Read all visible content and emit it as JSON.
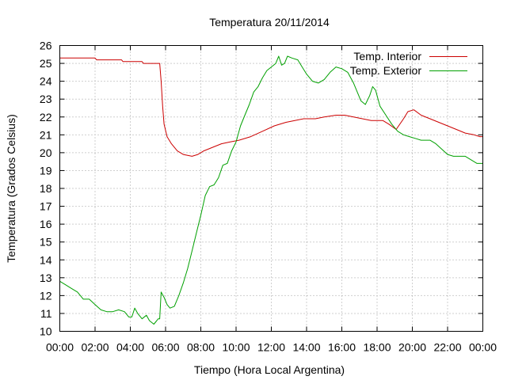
{
  "chart_data": {
    "type": "line",
    "title": "Temperatura 20/11/2014",
    "xlabel": "Tiempo (Hora Local Argentina)",
    "ylabel": "Temperatura (Grados Celsius)",
    "xlim": [
      "00:00",
      "24:00"
    ],
    "ylim": [
      10,
      26
    ],
    "x_ticks": [
      "00:00",
      "02:00",
      "04:00",
      "06:00",
      "08:00",
      "10:00",
      "12:00",
      "14:00",
      "16:00",
      "18:00",
      "20:00",
      "22:00",
      "00:00"
    ],
    "y_ticks": [
      10,
      11,
      12,
      13,
      14,
      15,
      16,
      17,
      18,
      19,
      20,
      21,
      22,
      23,
      24,
      25,
      26
    ],
    "grid": true,
    "legend_position": "top-right",
    "series": [
      {
        "name": "Temp. Interior",
        "color": "#cc0000",
        "points": [
          [
            "00:00",
            25.3
          ],
          [
            "02:00",
            25.3
          ],
          [
            "02:05",
            25.2
          ],
          [
            "03:30",
            25.2
          ],
          [
            "03:35",
            25.1
          ],
          [
            "04:40",
            25.1
          ],
          [
            "04:45",
            25.0
          ],
          [
            "05:40",
            25.0
          ],
          [
            "05:45",
            24.0
          ],
          [
            "05:50",
            22.6
          ],
          [
            "05:55",
            21.6
          ],
          [
            "06:05",
            20.9
          ],
          [
            "06:20",
            20.5
          ],
          [
            "06:40",
            20.1
          ],
          [
            "07:00",
            19.9
          ],
          [
            "07:30",
            19.8
          ],
          [
            "07:50",
            19.9
          ],
          [
            "08:10",
            20.1
          ],
          [
            "08:40",
            20.3
          ],
          [
            "09:10",
            20.5
          ],
          [
            "09:40",
            20.6
          ],
          [
            "10:10",
            20.7
          ],
          [
            "10:50",
            20.9
          ],
          [
            "11:30",
            21.2
          ],
          [
            "12:10",
            21.5
          ],
          [
            "12:50",
            21.7
          ],
          [
            "13:20",
            21.8
          ],
          [
            "13:50",
            21.9
          ],
          [
            "14:30",
            21.9
          ],
          [
            "15:00",
            22.0
          ],
          [
            "15:40",
            22.1
          ],
          [
            "16:10",
            22.1
          ],
          [
            "16:40",
            22.0
          ],
          [
            "17:10",
            21.9
          ],
          [
            "17:40",
            21.8
          ],
          [
            "18:20",
            21.8
          ],
          [
            "18:40",
            21.6
          ],
          [
            "19:05",
            21.3
          ],
          [
            "19:30",
            21.9
          ],
          [
            "19:45",
            22.3
          ],
          [
            "20:05",
            22.4
          ],
          [
            "20:30",
            22.1
          ],
          [
            "21:00",
            21.9
          ],
          [
            "21:30",
            21.7
          ],
          [
            "22:00",
            21.5
          ],
          [
            "22:30",
            21.3
          ],
          [
            "23:00",
            21.1
          ],
          [
            "23:30",
            21.0
          ],
          [
            "23:50",
            20.9
          ],
          [
            "24:00",
            20.9
          ]
        ]
      },
      {
        "name": "Temp. Exterior",
        "color": "#00a000",
        "points": [
          [
            "00:00",
            12.8
          ],
          [
            "00:20",
            12.6
          ],
          [
            "00:40",
            12.4
          ],
          [
            "01:00",
            12.2
          ],
          [
            "01:10",
            12.0
          ],
          [
            "01:20",
            11.8
          ],
          [
            "01:40",
            11.8
          ],
          [
            "02:00",
            11.5
          ],
          [
            "02:20",
            11.2
          ],
          [
            "02:40",
            11.1
          ],
          [
            "03:00",
            11.1
          ],
          [
            "03:20",
            11.2
          ],
          [
            "03:40",
            11.1
          ],
          [
            "03:55",
            10.8
          ],
          [
            "04:05",
            10.8
          ],
          [
            "04:15",
            11.3
          ],
          [
            "04:25",
            11.0
          ],
          [
            "04:40",
            10.7
          ],
          [
            "04:55",
            10.9
          ],
          [
            "05:05",
            10.6
          ],
          [
            "05:20",
            10.4
          ],
          [
            "05:30",
            10.6
          ],
          [
            "05:35",
            10.7
          ],
          [
            "05:40",
            10.7
          ],
          [
            "05:45",
            12.2
          ],
          [
            "05:55",
            11.9
          ],
          [
            "06:05",
            11.5
          ],
          [
            "06:15",
            11.3
          ],
          [
            "06:30",
            11.4
          ],
          [
            "06:45",
            12.0
          ],
          [
            "07:00",
            12.7
          ],
          [
            "07:15",
            13.5
          ],
          [
            "07:30",
            14.5
          ],
          [
            "07:45",
            15.5
          ],
          [
            "08:00",
            16.5
          ],
          [
            "08:15",
            17.6
          ],
          [
            "08:30",
            18.1
          ],
          [
            "08:45",
            18.2
          ],
          [
            "09:00",
            18.6
          ],
          [
            "09:15",
            19.3
          ],
          [
            "09:30",
            19.4
          ],
          [
            "09:45",
            20.1
          ],
          [
            "10:00",
            20.6
          ],
          [
            "10:15",
            21.5
          ],
          [
            "10:30",
            22.1
          ],
          [
            "10:45",
            22.7
          ],
          [
            "11:00",
            23.4
          ],
          [
            "11:15",
            23.7
          ],
          [
            "11:30",
            24.2
          ],
          [
            "11:45",
            24.6
          ],
          [
            "12:00",
            24.8
          ],
          [
            "12:15",
            25.0
          ],
          [
            "12:25",
            25.4
          ],
          [
            "12:35",
            24.9
          ],
          [
            "12:45",
            25.0
          ],
          [
            "12:55",
            25.4
          ],
          [
            "13:10",
            25.3
          ],
          [
            "13:30",
            25.2
          ],
          [
            "13:45",
            24.8
          ],
          [
            "14:00",
            24.4
          ],
          [
            "14:20",
            24.0
          ],
          [
            "14:40",
            23.9
          ],
          [
            "15:00",
            24.1
          ],
          [
            "15:20",
            24.5
          ],
          [
            "15:40",
            24.8
          ],
          [
            "16:00",
            24.7
          ],
          [
            "16:20",
            24.5
          ],
          [
            "16:40",
            23.9
          ],
          [
            "16:55",
            23.3
          ],
          [
            "17:05",
            22.9
          ],
          [
            "17:20",
            22.7
          ],
          [
            "17:35",
            23.2
          ],
          [
            "17:45",
            23.7
          ],
          [
            "17:55",
            23.5
          ],
          [
            "18:10",
            22.6
          ],
          [
            "18:30",
            22.1
          ],
          [
            "18:50",
            21.6
          ],
          [
            "19:10",
            21.2
          ],
          [
            "19:30",
            21.0
          ],
          [
            "19:50",
            20.9
          ],
          [
            "20:10",
            20.8
          ],
          [
            "20:30",
            20.7
          ],
          [
            "21:00",
            20.7
          ],
          [
            "21:20",
            20.5
          ],
          [
            "21:40",
            20.2
          ],
          [
            "22:00",
            19.9
          ],
          [
            "22:20",
            19.8
          ],
          [
            "23:00",
            19.8
          ],
          [
            "23:20",
            19.6
          ],
          [
            "23:40",
            19.4
          ],
          [
            "24:00",
            19.4
          ]
        ]
      }
    ]
  }
}
